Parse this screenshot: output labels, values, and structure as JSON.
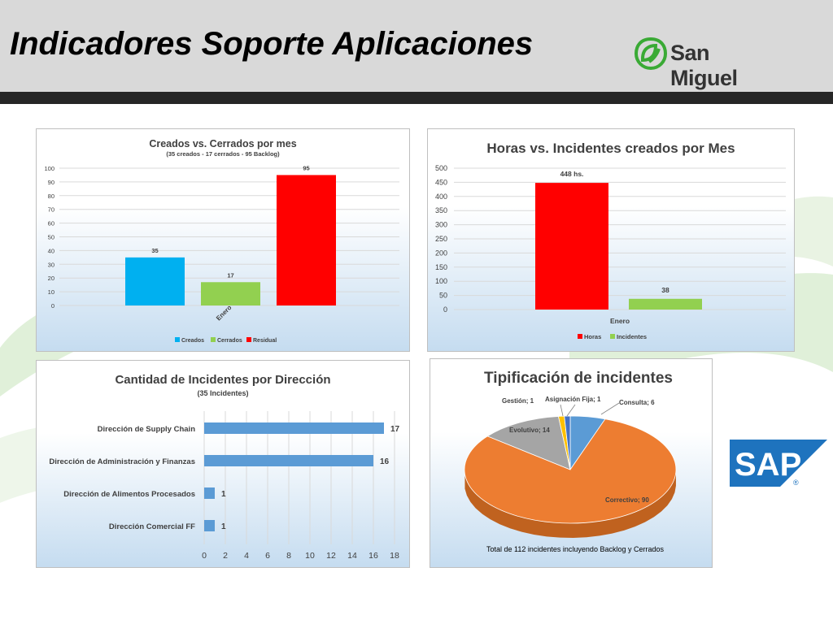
{
  "slide": {
    "title": "Indicadores Soporte Aplicaciones",
    "brand": "San Miguel",
    "sap_logo": "SAP"
  },
  "colors": {
    "header_bg": "#d9d9d9",
    "header_bar": "#262626",
    "brand_green": "#3aaa35",
    "blue": "#00b0f0",
    "green": "#92d050",
    "red": "#ff0000",
    "bar_blue": "#5b9bd5",
    "orange": "#ed7d31",
    "gray": "#a5a5a5",
    "yellow": "#ffc000",
    "navy": "#4472c4",
    "sap_blue": "#1e73be"
  },
  "chart_data": [
    {
      "type": "bar",
      "title": "Creados vs. Cerrados por mes",
      "subtitle": "(35 creados - 17 cerrados - 95 Backlog)",
      "categories": [
        "Enero"
      ],
      "series": [
        {
          "name": "Creados",
          "values": [
            35
          ]
        },
        {
          "name": "Cerrados",
          "values": [
            17
          ]
        },
        {
          "name": "Residual",
          "values": [
            95
          ]
        }
      ],
      "ylim": [
        0,
        100
      ],
      "yticks": [
        0,
        10,
        20,
        30,
        40,
        50,
        60,
        70,
        80,
        90,
        100
      ],
      "data_labels": [
        "35",
        "17",
        "95"
      ],
      "grid": true,
      "legend": "bottom"
    },
    {
      "type": "bar",
      "title": "Horas vs. Incidentes creados por Mes",
      "categories": [
        "Enero"
      ],
      "series": [
        {
          "name": "Horas",
          "values": [
            448
          ]
        },
        {
          "name": "Incidentes",
          "values": [
            38
          ]
        }
      ],
      "ylim": [
        0,
        500
      ],
      "yticks": [
        0,
        50,
        100,
        150,
        200,
        250,
        300,
        350,
        400,
        450,
        500
      ],
      "data_labels": [
        "448 hs.",
        "38"
      ],
      "grid": true,
      "legend": "bottom"
    },
    {
      "type": "bar",
      "orientation": "horizontal",
      "title": "Cantidad de Incidentes por Dirección",
      "subtitle": "(35 Incidentes)",
      "categories": [
        "Dirección de Supply Chain",
        "Dirección de Administración y Finanzas",
        "Dirección de Alimentos Procesados",
        "Dirección Comercial FF"
      ],
      "values": [
        17,
        16,
        1,
        1
      ],
      "data_labels": [
        "17",
        "16",
        "1",
        "1"
      ],
      "xlim": [
        0,
        18
      ],
      "xticks": [
        0,
        2,
        4,
        6,
        8,
        10,
        12,
        14,
        16,
        18
      ],
      "grid": true
    },
    {
      "type": "pie",
      "title": "Tipificación de incidentes",
      "labels": [
        "Consulta",
        "Correctivo",
        "Evolutivo",
        "Gestión",
        "Asignación Fija"
      ],
      "values": [
        6,
        90,
        14,
        1,
        1
      ],
      "data_labels": [
        "Consulta; 6",
        "Correctivo; 90",
        "Evolutivo; 14",
        "Gestión; 1",
        "Asignación Fija; 1"
      ],
      "note": "Total de 112 incidentes incluyendo Backlog y Cerrados"
    }
  ]
}
